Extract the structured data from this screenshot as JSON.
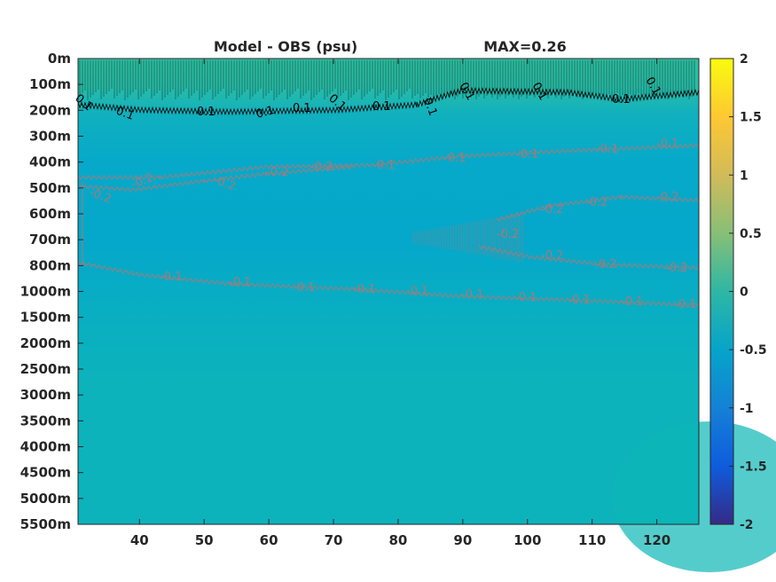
{
  "chart_data": {
    "type": "heatmap",
    "title": "Model - OBS (psu)",
    "max_label": "MAX=0.26",
    "x_ticks": [
      "40",
      "50",
      "60",
      "70",
      "80",
      "90",
      "100",
      "110",
      "120"
    ],
    "x_tick_values": [
      40,
      50,
      60,
      70,
      80,
      90,
      100,
      110,
      120
    ],
    "xlim": [
      30.5,
      126.5
    ],
    "y_ticks": [
      "0m",
      "100m",
      "200m",
      "300m",
      "400m",
      "500m",
      "600m",
      "700m",
      "800m",
      "1000m",
      "1500m",
      "2000m",
      "2500m",
      "3000m",
      "3500m",
      "4000m",
      "4500m",
      "5000m",
      "5500m"
    ],
    "colorbar": {
      "ticks": [
        "2",
        "1.5",
        "1",
        "0.5",
        "0",
        "-0.5",
        "-1",
        "-1.5",
        "-2"
      ],
      "tick_values": [
        2,
        1.5,
        1,
        0.5,
        0,
        -0.5,
        -1,
        -1.5,
        -2
      ],
      "range": [
        -2,
        2
      ],
      "colormap": "parula"
    },
    "contours": [
      {
        "level": 0.1,
        "color": "#000000",
        "label": "0.1"
      },
      {
        "level": -0.1,
        "color": "#a07c7c",
        "label": "-0.1"
      },
      {
        "level": -0.2,
        "color": "#a07c7c",
        "label": "-0.2"
      }
    ],
    "colors": {
      "surface": "#2cbca0",
      "mid_depth": "#06aac8",
      "deep": "#0cb3bb",
      "axis": "#262626"
    }
  }
}
